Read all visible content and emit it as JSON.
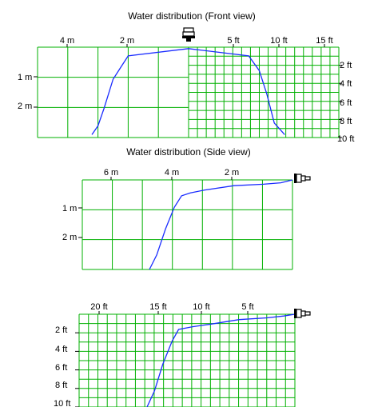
{
  "colors": {
    "grid": "#00b000",
    "curve": "#1a2cff",
    "text": "#000000",
    "background": "#ffffff"
  },
  "chart_data": [
    {
      "type": "line",
      "title": "Water distribution (Front view)",
      "units": {
        "left_x": "m",
        "right_x": "ft",
        "left_y": "m",
        "right_y": "ft"
      },
      "left_x_ticks": [
        "4 m",
        "2 m"
      ],
      "right_x_ticks": [
        "5 ft",
        "10 ft",
        "15 ft"
      ],
      "left_y_ticks": [
        "1 m",
        "2 m"
      ],
      "right_y_ticks": [
        "2 ft",
        "4 ft",
        "6 ft",
        "8 ft",
        "10 ft"
      ],
      "xlim_m": [
        -5.0,
        5.0
      ],
      "ylim_m": [
        0,
        3.1
      ],
      "series": [
        {
          "x_m": [
            -3.2,
            -3.0,
            -2.8,
            -2.5,
            -2.25,
            -2.0,
            0.0,
            2.0,
            2.35,
            2.6,
            2.85,
            3.2
          ],
          "y_m": [
            3.0,
            2.7,
            2.1,
            1.1,
            0.7,
            0.3,
            0.05,
            0.3,
            0.8,
            1.6,
            2.6,
            3.0
          ]
        }
      ]
    },
    {
      "type": "line",
      "title": "Water distribution (Side view)",
      "units": {
        "x": "m",
        "y": "m"
      },
      "x_ticks": [
        "6 m",
        "4 m",
        "2 m"
      ],
      "y_ticks": [
        "1 m",
        "2 m"
      ],
      "xlim_m": [
        0,
        7.2
      ],
      "ylim_m": [
        0,
        3.1
      ],
      "series": [
        {
          "x_m": [
            4.9,
            4.65,
            4.35,
            4.05,
            3.8,
            3.5,
            3.0,
            2.0,
            1.0,
            0.4,
            0.0
          ],
          "y_m": [
            3.1,
            2.6,
            1.7,
            0.95,
            0.55,
            0.45,
            0.35,
            0.2,
            0.15,
            0.1,
            0.0
          ]
        }
      ]
    },
    {
      "type": "line",
      "units": {
        "x": "ft",
        "y": "ft"
      },
      "x_ticks": [
        "20 ft",
        "15 ft",
        "10 ft",
        "5 ft"
      ],
      "y_ticks": [
        "2 ft",
        "4 ft",
        "6 ft",
        "8 ft",
        "10 ft"
      ],
      "xlim_ft": [
        0,
        23.2
      ],
      "ylim_ft": [
        0,
        10.4
      ],
      "series": [
        {
          "x_ft": [
            15.9,
            15.1,
            14.2,
            13.2,
            12.5,
            11.0,
            9.0,
            6.0,
            3.0,
            1.2,
            0.0
          ],
          "y_ft": [
            10.4,
            8.6,
            5.6,
            3.0,
            1.7,
            1.4,
            1.1,
            0.6,
            0.4,
            0.2,
            0.0
          ]
        }
      ]
    }
  ]
}
